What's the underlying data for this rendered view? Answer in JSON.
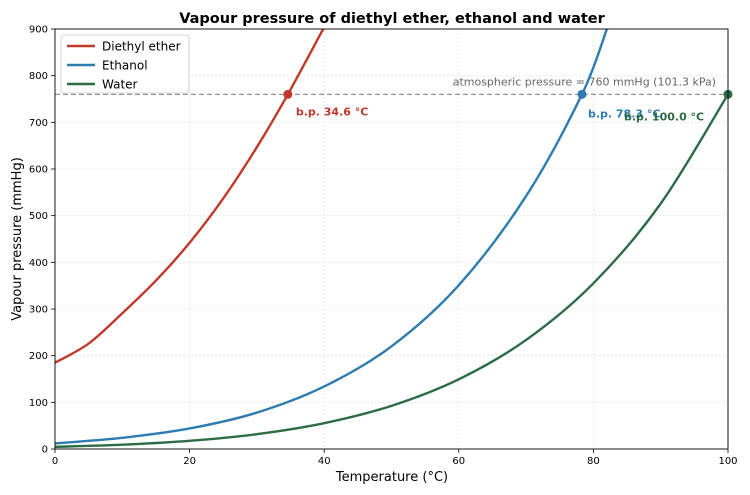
{
  "chart_data": {
    "type": "line",
    "title": "Vapour pressure of diethyl ether, ethanol and water",
    "xlabel": "Temperature (°C)",
    "ylabel": "Vapour pressure (mmHg)",
    "xlim": [
      0,
      100
    ],
    "ylim": [
      0,
      900
    ],
    "x_ticks": [
      0,
      20,
      40,
      60,
      80,
      100
    ],
    "y_ticks": [
      0,
      100,
      200,
      300,
      400,
      500,
      600,
      700,
      800,
      900
    ],
    "grid": true,
    "legend_position": "top-left",
    "series": [
      {
        "name": "Diethyl ether",
        "color": "#c0392b",
        "x": [
          0,
          5,
          10,
          15,
          20,
          25,
          30,
          34.6,
          40
        ],
        "y": [
          185,
          226,
          291,
          361,
          442,
          537,
          647,
          760,
          904
        ]
      },
      {
        "name": "Ethanol",
        "color": "#2e7bb0",
        "x": [
          0,
          10,
          20,
          30,
          40,
          50,
          60,
          70,
          78.3,
          82
        ],
        "y": [
          12,
          24,
          44,
          78,
          134,
          220,
          351,
          542,
          760,
          900
        ]
      },
      {
        "name": "Water",
        "color": "#2d6b45",
        "x": [
          0,
          10,
          20,
          30,
          40,
          50,
          60,
          70,
          80,
          90,
          100
        ],
        "y": [
          4.6,
          9.2,
          17.5,
          31.8,
          55.3,
          92.5,
          149.4,
          233.7,
          355.1,
          525.8,
          760
        ]
      }
    ],
    "reference_line": {
      "y": 760,
      "label": "atmospheric pressure = 760 mmHg (101.3 kPa)",
      "color": "#888888"
    },
    "annotations": [
      {
        "x": 34.6,
        "y": 760,
        "label": "b.p. 34.6 °C",
        "color": "#c0392b"
      },
      {
        "x": 78.3,
        "y": 760,
        "label": "b.p. 78.3 °C",
        "color": "#2e7bb0"
      },
      {
        "x": 100,
        "y": 760,
        "label": "b.p. 100.0 °C",
        "color": "#2d6b45"
      }
    ]
  }
}
